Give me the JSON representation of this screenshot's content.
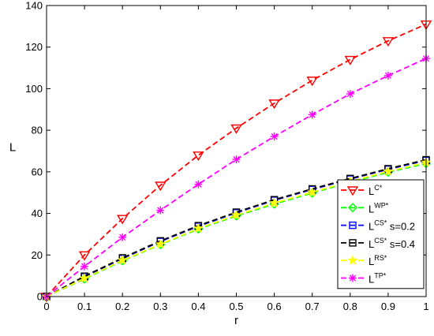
{
  "chart_data": {
    "type": "line",
    "title": "",
    "xlabel": "r",
    "ylabel": "L",
    "xlim": [
      0,
      1
    ],
    "ylim": [
      0,
      140
    ],
    "xticks": [
      0,
      0.1,
      0.2,
      0.3,
      0.4,
      0.5,
      0.6,
      0.7,
      0.8,
      0.9,
      1
    ],
    "yticks": [
      0,
      20,
      40,
      60,
      80,
      100,
      120,
      140
    ],
    "xtick_labels": [
      "0",
      "0.1",
      "0.2",
      "0.3",
      "0.4",
      "0.5",
      "0.6",
      "0.7",
      "0.8",
      "0.9",
      "1"
    ],
    "ytick_labels": [
      "0",
      "20",
      "40",
      "60",
      "80",
      "100",
      "120",
      "140"
    ],
    "grid": false,
    "legend_position": "bottom-right",
    "x": [
      0,
      0.1,
      0.2,
      0.3,
      0.4,
      0.5,
      0.6,
      0.7,
      0.8,
      0.9,
      1.0
    ],
    "series": [
      {
        "base": "L",
        "sup": "C*",
        "suffix": "",
        "color": "#ff0000",
        "marker": "triangle-down",
        "values": [
          0,
          20,
          37.5,
          53.5,
          68,
          81,
          93,
          104,
          114,
          123,
          131
        ]
      },
      {
        "base": "L",
        "sup": "WP*",
        "suffix": "",
        "color": "#00ff00",
        "marker": "diamond",
        "values": [
          0,
          8.5,
          17.2,
          25,
          32.5,
          38.8,
          44.5,
          49.8,
          55,
          59.8,
          64
        ]
      },
      {
        "base": "L",
        "sup": "CS*",
        "suffix": "s=0.2",
        "color": "#0000ff",
        "marker": "square",
        "values": [
          0,
          9.5,
          18.3,
          26.5,
          33.8,
          40.3,
          46.3,
          51.5,
          56.5,
          61.2,
          65.5
        ]
      },
      {
        "base": "L",
        "sup": "CS*",
        "suffix": "s=0.4",
        "color": "#000000",
        "marker": "square",
        "values": [
          0,
          9.8,
          18.6,
          26.8,
          34.1,
          40.6,
          46.6,
          51.8,
          56.8,
          61.5,
          65.8
        ]
      },
      {
        "base": "L",
        "sup": "RS*",
        "suffix": "",
        "color": "#ffff00",
        "marker": "star",
        "values": [
          0,
          8.8,
          17.5,
          25.2,
          32.8,
          39.2,
          45,
          50.2,
          55.4,
          60.2,
          64.5
        ]
      },
      {
        "base": "L",
        "sup": "TP*",
        "suffix": "",
        "color": "#ff00ff",
        "marker": "asterisk",
        "values": [
          0,
          14.5,
          28.5,
          41.5,
          54,
          66,
          77,
          87.5,
          97.5,
          106.3,
          114.5
        ]
      }
    ]
  }
}
